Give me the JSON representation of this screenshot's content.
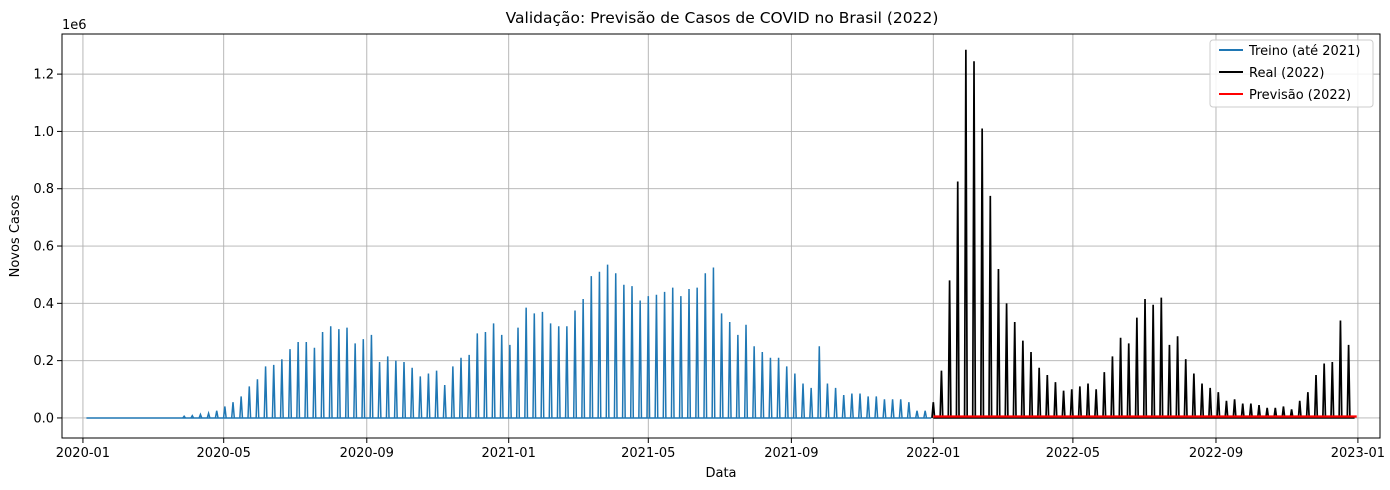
{
  "chart_data": {
    "type": "line",
    "title": "Validação: Previsão de Casos de COVID no Brasil (2022)",
    "xlabel": "Data",
    "ylabel": "Novos Casos",
    "y_offset_label": "1e6",
    "x_ticks": [
      "2020-01",
      "2020-05",
      "2020-09",
      "2021-01",
      "2021-05",
      "2021-09",
      "2022-01",
      "2022-05",
      "2022-09",
      "2023-01"
    ],
    "y_ticks": [
      "0.0",
      "0.2",
      "0.4",
      "0.6",
      "0.8",
      "1.0",
      "1.2"
    ],
    "xlim": [
      "2019-12-14",
      "2023-01-20"
    ],
    "ylim": [
      -0.07,
      1.34
    ],
    "grid": true,
    "legend_position": "top-right",
    "note": "Weekly spike series; values are weekly reported case peaks (millions), daily values in between are ~0.",
    "series": [
      {
        "name": "Treino (até 2021)",
        "color": "#1f77b4",
        "points": [
          [
            "2020-01-04",
            0.0
          ],
          [
            "2020-02-29",
            0.0
          ],
          [
            "2020-03-28",
            0.006
          ],
          [
            "2020-04-04",
            0.008
          ],
          [
            "2020-04-11",
            0.012
          ],
          [
            "2020-04-18",
            0.016
          ],
          [
            "2020-04-25",
            0.025
          ],
          [
            "2020-05-02",
            0.04
          ],
          [
            "2020-05-09",
            0.055
          ],
          [
            "2020-05-16",
            0.075
          ],
          [
            "2020-05-23",
            0.11
          ],
          [
            "2020-05-30",
            0.135
          ],
          [
            "2020-06-06",
            0.18
          ],
          [
            "2020-06-13",
            0.185
          ],
          [
            "2020-06-20",
            0.205
          ],
          [
            "2020-06-27",
            0.24
          ],
          [
            "2020-07-04",
            0.265
          ],
          [
            "2020-07-11",
            0.265
          ],
          [
            "2020-07-18",
            0.245
          ],
          [
            "2020-07-25",
            0.3
          ],
          [
            "2020-08-01",
            0.32
          ],
          [
            "2020-08-08",
            0.31
          ],
          [
            "2020-08-15",
            0.315
          ],
          [
            "2020-08-22",
            0.26
          ],
          [
            "2020-08-29",
            0.275
          ],
          [
            "2020-09-05",
            0.29
          ],
          [
            "2020-09-12",
            0.195
          ],
          [
            "2020-09-19",
            0.215
          ],
          [
            "2020-09-26",
            0.2
          ],
          [
            "2020-10-03",
            0.195
          ],
          [
            "2020-10-10",
            0.175
          ],
          [
            "2020-10-17",
            0.145
          ],
          [
            "2020-10-24",
            0.155
          ],
          [
            "2020-10-31",
            0.165
          ],
          [
            "2020-11-07",
            0.115
          ],
          [
            "2020-11-14",
            0.18
          ],
          [
            "2020-11-21",
            0.21
          ],
          [
            "2020-11-28",
            0.22
          ],
          [
            "2020-12-05",
            0.295
          ],
          [
            "2020-12-12",
            0.3
          ],
          [
            "2020-12-19",
            0.33
          ],
          [
            "2020-12-26",
            0.29
          ],
          [
            "2021-01-02",
            0.255
          ],
          [
            "2021-01-09",
            0.315
          ],
          [
            "2021-01-16",
            0.385
          ],
          [
            "2021-01-23",
            0.365
          ],
          [
            "2021-01-30",
            0.37
          ],
          [
            "2021-02-06",
            0.33
          ],
          [
            "2021-02-13",
            0.32
          ],
          [
            "2021-02-20",
            0.32
          ],
          [
            "2021-02-27",
            0.375
          ],
          [
            "2021-03-06",
            0.415
          ],
          [
            "2021-03-13",
            0.495
          ],
          [
            "2021-03-20",
            0.51
          ],
          [
            "2021-03-27",
            0.535
          ],
          [
            "2021-04-03",
            0.505
          ],
          [
            "2021-04-10",
            0.465
          ],
          [
            "2021-04-17",
            0.46
          ],
          [
            "2021-04-24",
            0.41
          ],
          [
            "2021-05-01",
            0.425
          ],
          [
            "2021-05-08",
            0.43
          ],
          [
            "2021-05-15",
            0.44
          ],
          [
            "2021-05-22",
            0.455
          ],
          [
            "2021-05-29",
            0.425
          ],
          [
            "2021-06-05",
            0.45
          ],
          [
            "2021-06-12",
            0.455
          ],
          [
            "2021-06-19",
            0.505
          ],
          [
            "2021-06-26",
            0.525
          ],
          [
            "2021-07-03",
            0.365
          ],
          [
            "2021-07-10",
            0.335
          ],
          [
            "2021-07-17",
            0.29
          ],
          [
            "2021-07-24",
            0.325
          ],
          [
            "2021-07-31",
            0.25
          ],
          [
            "2021-08-07",
            0.23
          ],
          [
            "2021-08-14",
            0.21
          ],
          [
            "2021-08-21",
            0.21
          ],
          [
            "2021-08-28",
            0.18
          ],
          [
            "2021-09-04",
            0.155
          ],
          [
            "2021-09-11",
            0.12
          ],
          [
            "2021-09-18",
            0.105
          ],
          [
            "2021-09-25",
            0.25
          ],
          [
            "2021-10-02",
            0.12
          ],
          [
            "2021-10-09",
            0.105
          ],
          [
            "2021-10-16",
            0.08
          ],
          [
            "2021-10-23",
            0.085
          ],
          [
            "2021-10-30",
            0.085
          ],
          [
            "2021-11-06",
            0.075
          ],
          [
            "2021-11-13",
            0.075
          ],
          [
            "2021-11-20",
            0.065
          ],
          [
            "2021-11-27",
            0.065
          ],
          [
            "2021-12-04",
            0.065
          ],
          [
            "2021-12-11",
            0.055
          ],
          [
            "2021-12-18",
            0.025
          ],
          [
            "2021-12-25",
            0.025
          ]
        ]
      },
      {
        "name": "Real (2022)",
        "color": "#000000",
        "points": [
          [
            "2022-01-01",
            0.055
          ],
          [
            "2022-01-08",
            0.165
          ],
          [
            "2022-01-15",
            0.48
          ],
          [
            "2022-01-22",
            0.825
          ],
          [
            "2022-01-29",
            1.285
          ],
          [
            "2022-02-05",
            1.245
          ],
          [
            "2022-02-12",
            1.01
          ],
          [
            "2022-02-19",
            0.775
          ],
          [
            "2022-02-26",
            0.52
          ],
          [
            "2022-03-05",
            0.4
          ],
          [
            "2022-03-12",
            0.335
          ],
          [
            "2022-03-19",
            0.27
          ],
          [
            "2022-03-26",
            0.23
          ],
          [
            "2022-04-02",
            0.175
          ],
          [
            "2022-04-09",
            0.15
          ],
          [
            "2022-04-16",
            0.125
          ],
          [
            "2022-04-23",
            0.095
          ],
          [
            "2022-04-30",
            0.1
          ],
          [
            "2022-05-07",
            0.11
          ],
          [
            "2022-05-14",
            0.12
          ],
          [
            "2022-05-21",
            0.1
          ],
          [
            "2022-05-28",
            0.16
          ],
          [
            "2022-06-04",
            0.215
          ],
          [
            "2022-06-11",
            0.28
          ],
          [
            "2022-06-18",
            0.26
          ],
          [
            "2022-06-25",
            0.35
          ],
          [
            "2022-07-02",
            0.415
          ],
          [
            "2022-07-09",
            0.395
          ],
          [
            "2022-07-16",
            0.42
          ],
          [
            "2022-07-23",
            0.255
          ],
          [
            "2022-07-30",
            0.285
          ],
          [
            "2022-08-06",
            0.205
          ],
          [
            "2022-08-13",
            0.155
          ],
          [
            "2022-08-20",
            0.12
          ],
          [
            "2022-08-27",
            0.105
          ],
          [
            "2022-09-03",
            0.09
          ],
          [
            "2022-09-10",
            0.06
          ],
          [
            "2022-09-17",
            0.065
          ],
          [
            "2022-09-24",
            0.05
          ],
          [
            "2022-10-01",
            0.05
          ],
          [
            "2022-10-08",
            0.045
          ],
          [
            "2022-10-15",
            0.035
          ],
          [
            "2022-10-22",
            0.035
          ],
          [
            "2022-10-29",
            0.04
          ],
          [
            "2022-11-05",
            0.03
          ],
          [
            "2022-11-12",
            0.06
          ],
          [
            "2022-11-19",
            0.09
          ],
          [
            "2022-11-26",
            0.15
          ],
          [
            "2022-12-03",
            0.19
          ],
          [
            "2022-12-10",
            0.195
          ],
          [
            "2022-12-17",
            0.34
          ],
          [
            "2022-12-24",
            0.255
          ]
        ]
      },
      {
        "name": "Previsão (2022)",
        "color": "#ff0000",
        "value": 0.005,
        "range": [
          "2022-01-01",
          "2022-12-31"
        ]
      }
    ]
  }
}
